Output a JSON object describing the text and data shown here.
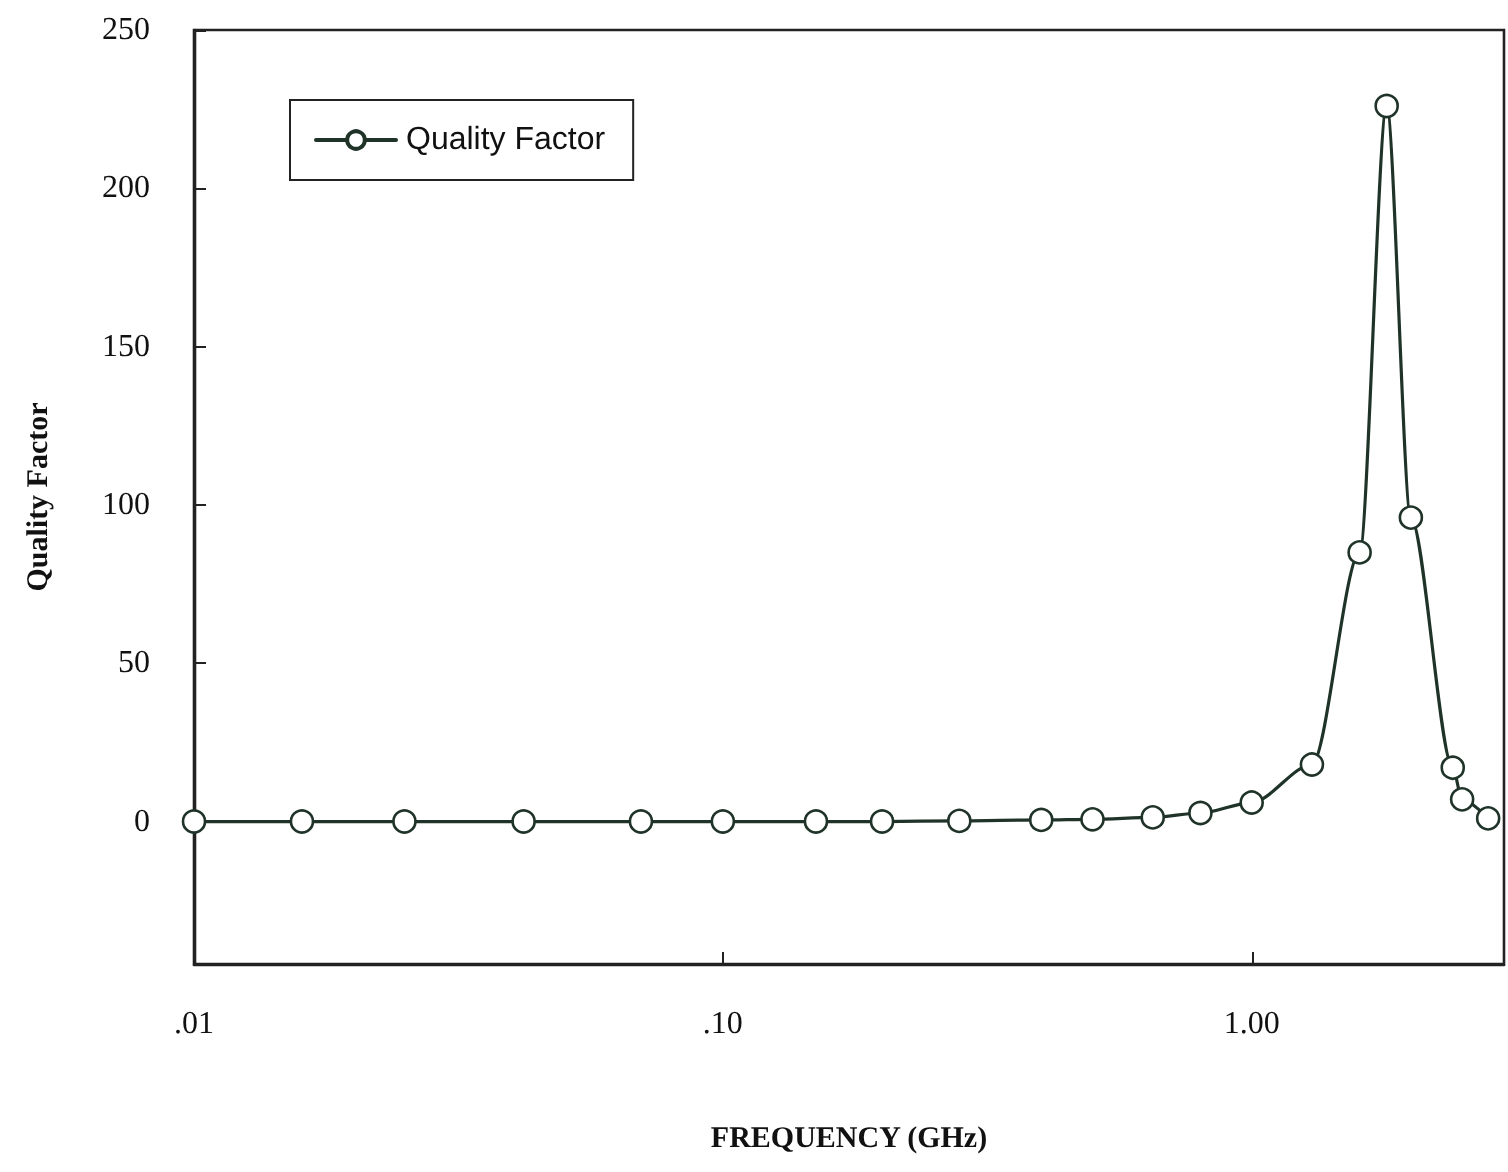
{
  "chart_data": {
    "type": "line",
    "xlabel": "FREQUENCY (GHz)",
    "ylabel": "Quality Factor",
    "log": "x",
    "x": [
      0.01,
      0.016,
      0.025,
      0.042,
      0.07,
      0.1,
      0.15,
      0.2,
      0.28,
      0.4,
      0.5,
      0.65,
      0.8,
      1.0,
      1.3,
      1.6,
      1.8,
      2.0,
      2.4,
      2.5,
      2.8
    ],
    "series": [
      {
        "name": "Quality Factor",
        "color": "#1f3329",
        "values": [
          0,
          0,
          0,
          0,
          0,
          0,
          0,
          0,
          0.2,
          0.5,
          0.7,
          1.3,
          2.7,
          6,
          18,
          85,
          226,
          96,
          17,
          7,
          1
        ]
      }
    ],
    "xlim": [
      0.01,
      3
    ],
    "ylim": [
      -45,
      250
    ],
    "xticks": [
      {
        "value": 0.01,
        "label": ".01"
      },
      {
        "value": 0.1,
        "label": ".10"
      },
      {
        "value": 1,
        "label": "1.00"
      }
    ],
    "yticks": [
      0,
      50,
      100,
      150,
      200,
      250
    ],
    "marker": "circle",
    "line_style": "solid",
    "legend": "top left",
    "grid": false
  }
}
